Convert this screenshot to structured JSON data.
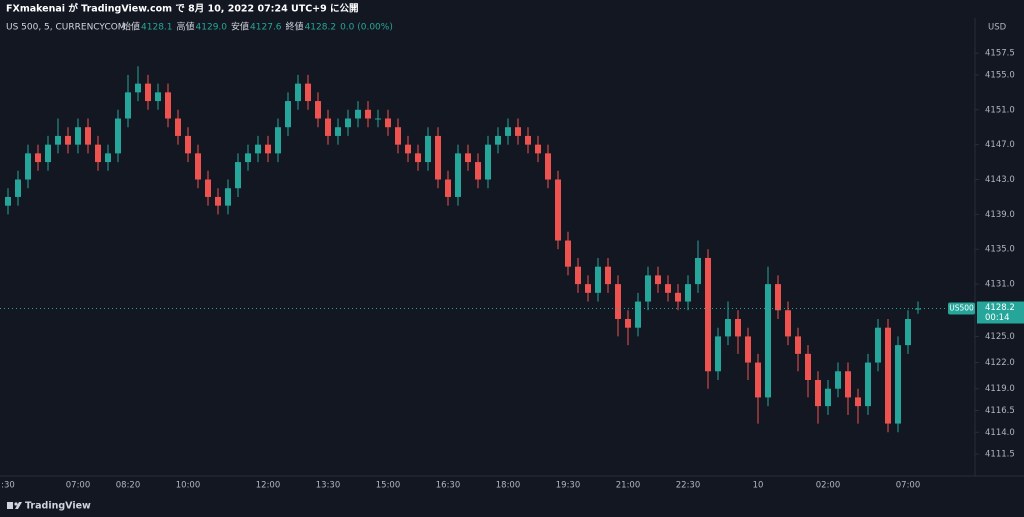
{
  "header": {
    "title": "FXmakenai が TradingView.com で 8月 10, 2022 07:24 UTC+9 に公開"
  },
  "legend": {
    "symbol": "US 500, 5, CURRENCYCOM",
    "ohlc": [
      {
        "label": "始値",
        "value": "4128.1"
      },
      {
        "label": "高値",
        "value": "4129.0"
      },
      {
        "label": "安値",
        "value": "4127.6"
      },
      {
        "label": "終値",
        "value": "4128.2"
      }
    ],
    "change": "0.0 (0.00%)"
  },
  "price_tag": {
    "symbol": "US500",
    "price": "4128.2",
    "countdown": "00:14"
  },
  "footer": {
    "brand": "TradingView"
  },
  "chart_data": {
    "type": "candlestick",
    "currency": "USD",
    "up_color": "#26a69a",
    "down_color": "#ef5350",
    "grid": false,
    "ylim": [
      4109.1,
      4161.3
    ],
    "yticks": [
      4157.5,
      {
        "value": 4155,
        "label": "4155.0"
      },
      {
        "value": 4151,
        "label": "4151.0"
      },
      {
        "value": 4147,
        "label": "4147.0"
      },
      {
        "value": 4143,
        "label": "4143.0"
      },
      {
        "value": 4139,
        "label": "4139.0"
      },
      {
        "value": 4135,
        "label": "4135.0"
      },
      {
        "value": 4131,
        "label": "4131.0"
      },
      {
        "value": 4125,
        "label": "4125.0"
      },
      {
        "value": 4122,
        "label": "4122.0"
      },
      {
        "value": 4119,
        "label": "4119.0"
      },
      4116.5,
      {
        "value": 4114,
        "label": "4114.0"
      },
      4111.5
    ],
    "categories": [
      ":30",
      null,
      null,
      null,
      null,
      null,
      null,
      "07:00",
      null,
      null,
      null,
      null,
      "08:20",
      null,
      null,
      null,
      null,
      null,
      "10:00",
      null,
      null,
      null,
      null,
      null,
      null,
      null,
      "12:00",
      null,
      null,
      null,
      null,
      null,
      "13:30",
      null,
      null,
      null,
      null,
      null,
      "15:00",
      null,
      null,
      null,
      null,
      null,
      "16:30",
      null,
      null,
      null,
      null,
      null,
      "18:00",
      null,
      null,
      null,
      null,
      null,
      "19:30",
      null,
      null,
      null,
      null,
      null,
      "21:00",
      null,
      null,
      null,
      null,
      null,
      "22:30",
      null,
      null,
      null,
      null,
      null,
      null,
      "10",
      null,
      null,
      null,
      null,
      null,
      null,
      "02:00",
      null,
      null,
      null,
      null,
      null,
      null,
      null,
      "07:00",
      null
    ],
    "open": [
      4140,
      4141,
      4143,
      4146,
      4145,
      4147,
      4148,
      4147,
      4149,
      4147,
      4145,
      4146,
      4150,
      4153,
      4154,
      4152,
      4153,
      4150,
      4148,
      4146,
      4143,
      4141,
      4140,
      4142,
      4145,
      4146,
      4147,
      4146,
      4149,
      4152,
      4154,
      4152,
      4150,
      4148,
      4149,
      4150,
      4151,
      4150,
      4150,
      4149,
      4147,
      4146,
      4145,
      4148,
      4143,
      4141,
      4146,
      4145,
      4143,
      4147,
      4148,
      4149,
      4148,
      4147,
      4146,
      4143,
      4136,
      4133,
      4131,
      4130,
      4133,
      4131,
      4127,
      4126,
      4129,
      4132,
      4131,
      4130,
      4129,
      4131,
      4134,
      4121,
      4125,
      4127,
      4125,
      4122,
      4118,
      4131,
      4128,
      4125,
      4123,
      4120,
      4117,
      4119,
      4121,
      4118,
      4117,
      4122,
      4126,
      4115,
      4124,
      4128.1
    ],
    "high": [
      4142,
      4144,
      4147,
      4147,
      4148,
      4150,
      4149,
      4150,
      4150,
      4148,
      4147,
      4151,
      4155,
      4156,
      4155,
      4154,
      4154,
      4151,
      4149,
      4147,
      4144,
      4142,
      4143,
      4146,
      4147,
      4148,
      4148,
      4150,
      4153,
      4155,
      4155,
      4153,
      4151,
      4150,
      4151,
      4152,
      4152,
      4151,
      4151,
      4150,
      4148,
      4147,
      4149,
      4149,
      4144,
      4147,
      4147,
      4146,
      4148,
      4149,
      4150,
      4150,
      4149,
      4148,
      4147,
      4144,
      4137,
      4134,
      4132,
      4134,
      4134,
      4132,
      4128,
      4130,
      4133,
      4133,
      4132,
      4131,
      4132,
      4136,
      4135,
      4126,
      4129,
      4128,
      4126,
      4123,
      4133,
      4132,
      4129,
      4126,
      4124,
      4121,
      4120,
      4122,
      4122,
      4119,
      4123,
      4127,
      4127,
      4125,
      4128,
      4129.0
    ],
    "low": [
      4139,
      4140,
      4142,
      4144,
      4144,
      4146,
      4146,
      4146,
      4146,
      4144,
      4144,
      4145,
      4149,
      4152,
      4151,
      4151,
      4149,
      4147,
      4145,
      4142,
      4140,
      4139,
      4139,
      4141,
      4144,
      4145,
      4145,
      4145,
      4148,
      4151,
      4151,
      4149,
      4147,
      4147,
      4148,
      4149,
      4149,
      4149,
      4148,
      4146,
      4145,
      4144,
      4144,
      4142,
      4140,
      4140,
      4144,
      4142,
      4142,
      4146,
      4147,
      4147,
      4146,
      4145,
      4142,
      4135,
      4132,
      4130,
      4129,
      4129,
      4130,
      4125,
      4124,
      4125,
      4128,
      4130,
      4129,
      4128,
      4128,
      4130,
      4119,
      4120,
      4124,
      4123,
      4120,
      4115,
      4117,
      4127,
      4124,
      4121,
      4118,
      4115,
      4116,
      4118,
      4116,
      4115,
      4116,
      4121,
      4114,
      4114,
      4123,
      4127.6
    ],
    "close": [
      4141,
      4143,
      4146,
      4145,
      4147,
      4148,
      4147,
      4149,
      4147,
      4145,
      4146,
      4150,
      4153,
      4154,
      4152,
      4153,
      4150,
      4148,
      4146,
      4143,
      4141,
      4140,
      4142,
      4145,
      4146,
      4147,
      4146,
      4149,
      4152,
      4154,
      4152,
      4150,
      4148,
      4149,
      4150,
      4151,
      4150,
      4150,
      4149,
      4147,
      4146,
      4145,
      4148,
      4143,
      4141,
      4146,
      4145,
      4143,
      4147,
      4148,
      4149,
      4148,
      4147,
      4146,
      4143,
      4136,
      4133,
      4131,
      4130,
      4133,
      4131,
      4127,
      4126,
      4129,
      4132,
      4131,
      4130,
      4129,
      4131,
      4134,
      4121,
      4125,
      4127,
      4125,
      4122,
      4118,
      4131,
      4128,
      4125,
      4123,
      4120,
      4117,
      4119,
      4121,
      4118,
      4117,
      4122,
      4126,
      4115,
      4124,
      4127,
      4128.2
    ]
  }
}
